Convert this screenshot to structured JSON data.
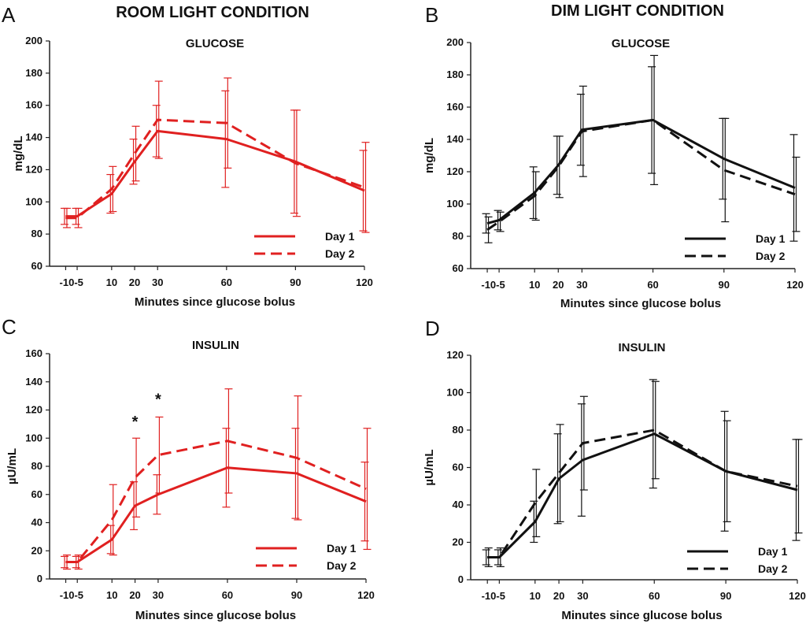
{
  "figure": {
    "titles": [
      {
        "key": "room",
        "text": "ROOM LIGHT CONDITION"
      },
      {
        "key": "dim",
        "text": "DIM LIGHT CONDITION"
      }
    ]
  },
  "chart_data": [
    {
      "panel": "A",
      "type": "line",
      "title": "GLUCOSE",
      "xlabel": "Minutes since glucose bolus",
      "ylabel": "mg/dL",
      "ylim": [
        60,
        200
      ],
      "yticks": [
        60,
        80,
        100,
        120,
        140,
        160,
        180,
        200
      ],
      "x": [
        -10,
        -5,
        10,
        20,
        30,
        60,
        90,
        120
      ],
      "x_tick_labels": [
        "-10",
        "-5",
        "10",
        "20",
        "30",
        "60",
        "90",
        "120"
      ],
      "color": "#e02020",
      "legend_position": "bottom-right",
      "series": [
        {
          "name": "Day 1",
          "style": "solid",
          "values": [
            91,
            91,
            105,
            125,
            144,
            139,
            125,
            107
          ],
          "error": [
            5,
            5,
            12,
            14,
            16,
            30,
            32,
            25
          ]
        },
        {
          "name": "Day 2",
          "style": "dashed",
          "values": [
            90,
            90,
            108,
            130,
            151,
            149,
            124,
            109
          ],
          "error": [
            6,
            6,
            14,
            17,
            24,
            28,
            33,
            28
          ]
        }
      ],
      "annotations": []
    },
    {
      "panel": "B",
      "type": "line",
      "title": "GLUCOSE",
      "xlabel": "Minutes since glucose bolus",
      "ylabel": "mg/dL",
      "ylim": [
        60,
        200
      ],
      "yticks": [
        60,
        80,
        100,
        120,
        140,
        160,
        180,
        200
      ],
      "x": [
        -10,
        -5,
        10,
        20,
        30,
        60,
        90,
        120
      ],
      "x_tick_labels": [
        "-10",
        "-5",
        "10",
        "20",
        "30",
        "60",
        "90",
        "120"
      ],
      "color": "#111111",
      "legend_position": "bottom-right",
      "series": [
        {
          "name": "Day 1",
          "style": "solid",
          "values": [
            88,
            90,
            107,
            124,
            146,
            152,
            128,
            110
          ],
          "error": [
            6,
            6,
            16,
            18,
            22,
            33,
            25,
            33
          ]
        },
        {
          "name": "Day 2",
          "style": "dashed",
          "values": [
            84,
            89,
            105,
            123,
            145,
            152,
            121,
            106
          ],
          "error": [
            8,
            6,
            15,
            19,
            28,
            40,
            32,
            23
          ]
        }
      ],
      "annotations": []
    },
    {
      "panel": "C",
      "type": "line",
      "title": "INSULIN",
      "xlabel": "Minutes since glucose bolus",
      "ylabel": "µU/mL",
      "ylim": [
        0,
        160
      ],
      "yticks": [
        0,
        20,
        40,
        60,
        80,
        100,
        120,
        140,
        160
      ],
      "x": [
        -10,
        -5,
        10,
        20,
        30,
        60,
        90,
        120
      ],
      "x_tick_labels": [
        "-10",
        "-5",
        "10",
        "20",
        "30",
        "60",
        "90",
        "120"
      ],
      "color": "#e02020",
      "legend_position": "bottom-right",
      "series": [
        {
          "name": "Day 1",
          "style": "solid",
          "values": [
            12,
            12,
            28,
            52,
            60,
            79,
            75,
            55
          ],
          "error": [
            4,
            4,
            10,
            17,
            14,
            28,
            32,
            28
          ]
        },
        {
          "name": "Day 2",
          "style": "dashed",
          "values": [
            12,
            12,
            42,
            72,
            88,
            98,
            86,
            64
          ],
          "error": [
            5,
            5,
            25,
            28,
            27,
            37,
            44,
            43
          ]
        }
      ],
      "annotations": [
        {
          "text": "*",
          "x": 20,
          "y": 108
        },
        {
          "text": "*",
          "x": 30,
          "y": 124
        }
      ]
    },
    {
      "panel": "D",
      "type": "line",
      "title": "INSULIN",
      "xlabel": "Minutes since glucose bolus",
      "ylabel": "µU/mL",
      "ylim": [
        0,
        120
      ],
      "yticks": [
        0,
        20,
        40,
        60,
        80,
        100,
        120
      ],
      "x": [
        -10,
        -5,
        10,
        20,
        30,
        60,
        90,
        120
      ],
      "x_tick_labels": [
        "-10",
        "-5",
        "10",
        "20",
        "30",
        "60",
        "90",
        "120"
      ],
      "color": "#111111",
      "legend_position": "bottom-right",
      "series": [
        {
          "name": "Day 1",
          "style": "solid",
          "values": [
            12,
            12,
            31,
            54,
            64,
            78,
            58,
            48
          ],
          "error": [
            4,
            4,
            11,
            24,
            30,
            29,
            32,
            27
          ]
        },
        {
          "name": "Day 2",
          "style": "dashed",
          "values": [
            12,
            12,
            41,
            57,
            73,
            80,
            58,
            50
          ],
          "error": [
            5,
            5,
            18,
            26,
            25,
            26,
            27,
            25
          ]
        }
      ],
      "annotations": []
    }
  ]
}
